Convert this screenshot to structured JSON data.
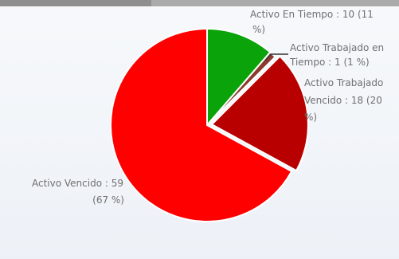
{
  "chart_data": {
    "type": "pie",
    "slices": [
      {
        "label": "Activo En Tiempo",
        "value": 10,
        "percent_text": "11 %",
        "color": "#0aa30a"
      },
      {
        "label": "Activo Trabajado en Tiempo",
        "value": 1,
        "percent_text": "1 %",
        "color": "#8b3a2f"
      },
      {
        "label": "Activo Trabajado Vencido",
        "value": 18,
        "percent_text": "20 %",
        "color": "#b80000"
      },
      {
        "label": "Activo Vencido",
        "value": 59,
        "percent_text": "67 %",
        "color": "#ff0000"
      }
    ],
    "data_labels": [
      {
        "line1": "Activo En Tiempo : 10 (11",
        "line2": "%)"
      },
      {
        "line1": "Activo Trabajado en",
        "line2": "Tiempo : 1 (1 %)"
      },
      {
        "line1": "Activo Trabajado",
        "line2": "Vencido : 18 (20",
        "line3": "%)"
      },
      {
        "line1": "Activo Vencido : 59",
        "line2": "(67 %)"
      }
    ],
    "slice_border_color": "#ffffff",
    "label_color": "#6f6f6f",
    "leader_color": "#333333"
  },
  "header_colors": {
    "strip": "#ababab",
    "strip_dark": "#8f8f8f"
  }
}
